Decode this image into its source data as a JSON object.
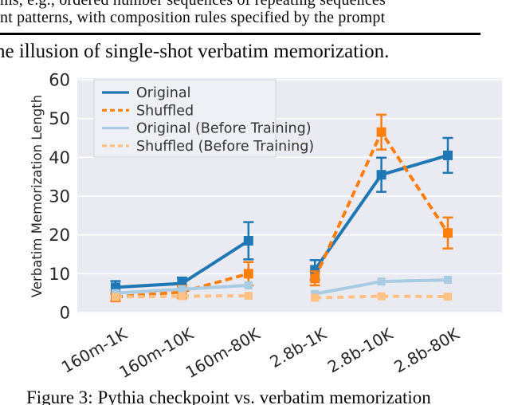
{
  "page": {
    "top_text_line1": "ms, e.g., ordered number sequences of repeating sequences",
    "top_text_line2": "nt patterns, with composition rules specified by the prompt",
    "section_heading": "he illusion of single-shot verbatim memorization.",
    "caption": "Figure 3: Pythia checkpoint vs. verbatim memorization"
  },
  "chart_data": {
    "type": "line",
    "title": "",
    "xlabel": "",
    "ylabel": "Verbatim Memorization Length",
    "categories": [
      "160m-1K",
      "160m-10K",
      "160m-80K",
      "2.8b-1K",
      "2.8b-10K",
      "2.8b-80K"
    ],
    "ylim": [
      0,
      60
    ],
    "yticks": [
      0,
      10,
      20,
      30,
      40,
      50,
      60
    ],
    "grid": true,
    "plot_bg_color": "#eaeaf2",
    "grid_color": "#ffffff",
    "legend_position": "upper-left",
    "gap_after_index": 2,
    "series": [
      {
        "name": "Original",
        "color": "#1f77b4",
        "dashed": false,
        "light": false,
        "values": [
          6.5,
          7.5,
          18.5,
          11.0,
          35.5,
          40.5
        ],
        "errors": [
          1.6,
          1.5,
          4.8,
          2.5,
          4.4,
          4.5
        ]
      },
      {
        "name": "Shuffled",
        "color": "#ff7f0e",
        "dashed": true,
        "light": false,
        "values": [
          4.0,
          5.3,
          10.0,
          8.8,
          46.5,
          20.5
        ],
        "errors": [
          1.1,
          1.6,
          3.0,
          1.8,
          4.5,
          4.0
        ]
      },
      {
        "name": "Original (Before Training)",
        "color": "#a9cce2",
        "dashed": false,
        "light": true,
        "values": [
          5.0,
          6.0,
          7.0,
          4.8,
          8.0,
          8.4
        ],
        "errors": [
          0.5,
          0.5,
          0.6,
          0.5,
          0.7,
          0.8
        ]
      },
      {
        "name": "Shuffled (Before Training)",
        "color": "#ffc184",
        "dashed": true,
        "light": true,
        "values": [
          4.0,
          4.2,
          4.3,
          3.8,
          4.2,
          4.1
        ],
        "errors": [
          0.4,
          0.4,
          0.5,
          0.4,
          0.5,
          0.4
        ]
      }
    ]
  }
}
